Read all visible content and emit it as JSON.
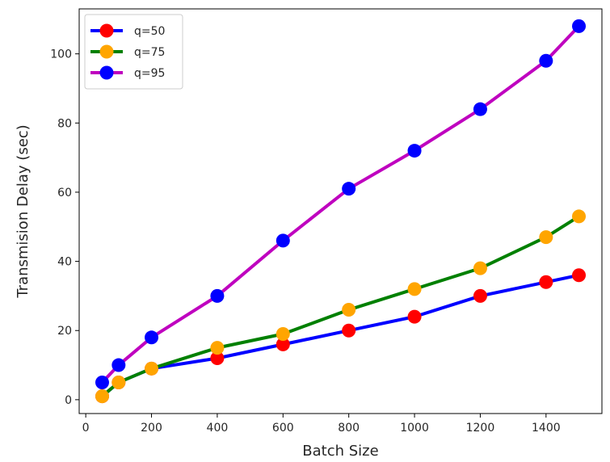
{
  "chart_data": {
    "type": "line",
    "xlabel": "Batch Size",
    "ylabel": "Transmision Delay (sec)",
    "xlim": [
      -20,
      1570
    ],
    "ylim": [
      -4,
      113
    ],
    "xticks": [
      0,
      200,
      400,
      600,
      800,
      1000,
      1200,
      1400
    ],
    "yticks": [
      0,
      20,
      40,
      60,
      80,
      100
    ],
    "grid": false,
    "legend_position": "top-left",
    "x": [
      50,
      100,
      200,
      400,
      600,
      800,
      1000,
      1200,
      1400,
      1500
    ],
    "series": [
      {
        "name": "q=50",
        "line_color": "#0000ff",
        "marker_color": "#ff0000",
        "values": [
          1,
          5,
          9,
          12,
          16,
          20,
          24,
          30,
          34,
          36
        ]
      },
      {
        "name": "q=75",
        "line_color": "#008000",
        "marker_color": "#ffa500",
        "values": [
          1,
          5,
          9,
          15,
          19,
          26,
          32,
          38,
          47,
          53
        ]
      },
      {
        "name": "q=95",
        "line_color": "#bf00bf",
        "marker_color": "#0000ff",
        "values": [
          5,
          10,
          18,
          30,
          46,
          61,
          72,
          84,
          98,
          108
        ]
      }
    ]
  }
}
